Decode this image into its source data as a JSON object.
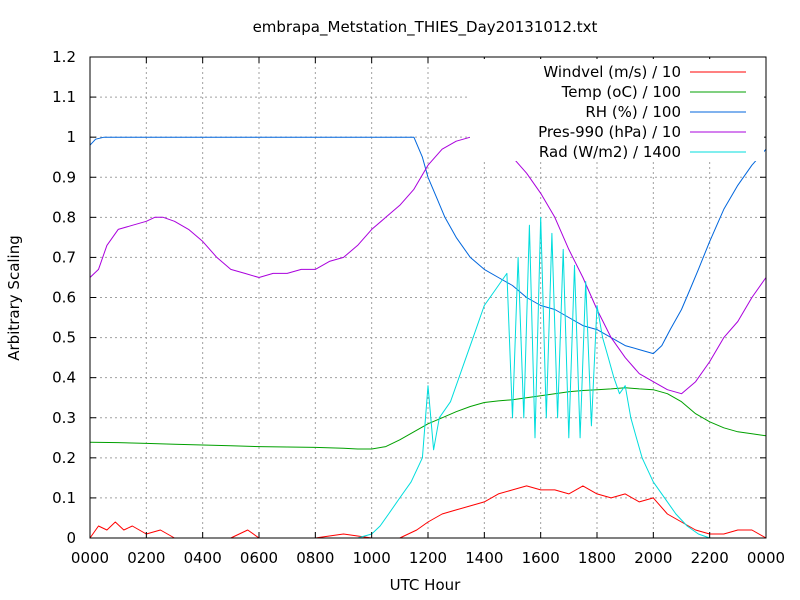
{
  "chart_data": {
    "type": "line",
    "title": "embrapa_Metstation_THIES_Day20131012.txt",
    "xlabel": "UTC Hour",
    "ylabel": "Arbitrary Scaling",
    "xlim": [
      0,
      24
    ],
    "ylim": [
      0,
      1.2
    ],
    "grid": true,
    "legend_position": "top-right",
    "x_tick_values": [
      0,
      2,
      4,
      6,
      8,
      10,
      12,
      14,
      16,
      18,
      20,
      22,
      24
    ],
    "x_tick_labels": [
      "0000",
      "0200",
      "0400",
      "0600",
      "0800",
      "1000",
      "1200",
      "1400",
      "1600",
      "1800",
      "2000",
      "2200",
      "0000"
    ],
    "y_ticks": [
      "0",
      "0.1",
      "0.2",
      "0.3",
      "0.4",
      "0.5",
      "0.6",
      "0.7",
      "0.8",
      "0.9",
      "1",
      "1.1",
      "1.2"
    ],
    "series": [
      {
        "name": "Windvel (m/s) / 10",
        "color": "#ff0000",
        "x": [
          0.0,
          0.3,
          0.6,
          0.9,
          1.2,
          1.5,
          2.0,
          2.5,
          3.0,
          3.5,
          4.0,
          5.0,
          5.6,
          6.0,
          7.0,
          8.0,
          9.0,
          10.0,
          11.0,
          11.6,
          12.0,
          12.5,
          13.0,
          13.5,
          14.0,
          14.5,
          15.0,
          15.5,
          16.0,
          16.5,
          17.0,
          17.5,
          18.0,
          18.5,
          19.0,
          19.5,
          20.0,
          20.5,
          21.0,
          21.5,
          22.0,
          22.5,
          23.0,
          23.5,
          24.0
        ],
        "y": [
          0.0,
          0.03,
          0.02,
          0.04,
          0.02,
          0.03,
          0.01,
          0.02,
          0.0,
          0.0,
          0.0,
          0.0,
          0.02,
          0.0,
          0.0,
          0.0,
          0.01,
          0.0,
          0.0,
          0.02,
          0.04,
          0.06,
          0.07,
          0.08,
          0.09,
          0.11,
          0.12,
          0.13,
          0.12,
          0.12,
          0.11,
          0.13,
          0.11,
          0.1,
          0.11,
          0.09,
          0.1,
          0.06,
          0.04,
          0.02,
          0.01,
          0.01,
          0.02,
          0.02,
          0.0
        ]
      },
      {
        "name": "Temp (oC) / 100",
        "color": "#00a000",
        "x": [
          0.0,
          1.0,
          2.0,
          3.0,
          4.0,
          5.0,
          6.0,
          7.0,
          8.0,
          9.0,
          9.5,
          10.0,
          10.5,
          11.0,
          11.5,
          12.0,
          12.5,
          13.0,
          13.5,
          14.0,
          14.5,
          15.0,
          15.5,
          16.0,
          16.5,
          17.0,
          17.5,
          18.0,
          18.5,
          19.0,
          19.5,
          20.0,
          20.5,
          21.0,
          21.5,
          22.0,
          22.5,
          23.0,
          23.5,
          24.0
        ],
        "y": [
          0.239,
          0.238,
          0.236,
          0.234,
          0.232,
          0.23,
          0.228,
          0.227,
          0.226,
          0.224,
          0.222,
          0.222,
          0.228,
          0.245,
          0.265,
          0.285,
          0.3,
          0.315,
          0.328,
          0.338,
          0.342,
          0.345,
          0.35,
          0.355,
          0.36,
          0.365,
          0.368,
          0.37,
          0.372,
          0.375,
          0.372,
          0.37,
          0.36,
          0.34,
          0.31,
          0.29,
          0.275,
          0.265,
          0.26,
          0.255
        ]
      },
      {
        "name": "RH (%) / 100",
        "color": "#0066dd",
        "x": [
          0.0,
          0.2,
          0.5,
          2.0,
          4.0,
          6.0,
          8.0,
          10.0,
          11.0,
          11.5,
          11.8,
          12.0,
          12.3,
          12.6,
          13.0,
          13.5,
          14.0,
          14.5,
          15.0,
          15.5,
          16.0,
          16.5,
          17.0,
          17.5,
          18.0,
          18.5,
          19.0,
          19.5,
          20.0,
          20.3,
          20.6,
          21.0,
          21.3,
          21.6,
          22.0,
          22.5,
          23.0,
          23.5,
          24.0
        ],
        "y": [
          0.98,
          0.995,
          1.0,
          1.0,
          1.0,
          1.0,
          1.0,
          1.0,
          1.0,
          1.0,
          0.95,
          0.9,
          0.85,
          0.8,
          0.75,
          0.7,
          0.67,
          0.65,
          0.63,
          0.6,
          0.58,
          0.57,
          0.55,
          0.53,
          0.52,
          0.5,
          0.48,
          0.47,
          0.46,
          0.48,
          0.52,
          0.57,
          0.62,
          0.67,
          0.74,
          0.82,
          0.88,
          0.93,
          0.97
        ]
      },
      {
        "name": "Pres-990 (hPa) / 10",
        "color": "#aa00dd",
        "x": [
          0.0,
          0.3,
          0.6,
          1.0,
          1.5,
          2.0,
          2.3,
          2.6,
          3.0,
          3.5,
          4.0,
          4.5,
          5.0,
          5.5,
          6.0,
          6.5,
          7.0,
          7.5,
          8.0,
          8.5,
          9.0,
          9.5,
          10.0,
          10.5,
          11.0,
          11.5,
          12.0,
          12.5,
          13.0,
          13.5,
          14.0,
          14.5,
          15.0,
          15.5,
          16.0,
          16.5,
          17.0,
          17.5,
          18.0,
          18.5,
          19.0,
          19.5,
          20.0,
          20.5,
          21.0,
          21.5,
          22.0,
          22.5,
          23.0,
          23.5,
          24.0
        ],
        "y": [
          0.65,
          0.67,
          0.73,
          0.77,
          0.78,
          0.79,
          0.8,
          0.8,
          0.79,
          0.77,
          0.74,
          0.7,
          0.67,
          0.66,
          0.65,
          0.66,
          0.66,
          0.67,
          0.67,
          0.69,
          0.7,
          0.73,
          0.77,
          0.8,
          0.83,
          0.87,
          0.93,
          0.97,
          0.99,
          1.0,
          1.0,
          0.98,
          0.95,
          0.91,
          0.86,
          0.8,
          0.72,
          0.65,
          0.57,
          0.5,
          0.45,
          0.41,
          0.39,
          0.37,
          0.36,
          0.39,
          0.44,
          0.5,
          0.54,
          0.6,
          0.65
        ]
      },
      {
        "name": "Rad (W/m2) / 1400",
        "color": "#00dddd",
        "x": [
          0.0,
          9.5,
          10.0,
          10.3,
          10.6,
          11.0,
          11.4,
          11.8,
          12.0,
          12.2,
          12.4,
          12.8,
          13.2,
          13.6,
          14.0,
          14.4,
          14.8,
          15.0,
          15.2,
          15.4,
          15.6,
          15.8,
          16.0,
          16.2,
          16.4,
          16.6,
          16.8,
          17.0,
          17.2,
          17.4,
          17.6,
          17.8,
          18.0,
          18.2,
          18.4,
          18.6,
          18.8,
          19.0,
          19.2,
          19.4,
          19.6,
          19.8,
          20.0,
          20.4,
          20.8,
          21.2,
          21.6,
          22.0,
          24.0
        ],
        "y": [
          0.0,
          0.0,
          0.01,
          0.03,
          0.06,
          0.1,
          0.14,
          0.2,
          0.38,
          0.22,
          0.3,
          0.34,
          0.42,
          0.5,
          0.58,
          0.62,
          0.66,
          0.3,
          0.7,
          0.3,
          0.78,
          0.25,
          0.8,
          0.3,
          0.76,
          0.3,
          0.72,
          0.25,
          0.68,
          0.25,
          0.64,
          0.28,
          0.58,
          0.5,
          0.45,
          0.4,
          0.36,
          0.38,
          0.3,
          0.25,
          0.2,
          0.17,
          0.14,
          0.1,
          0.06,
          0.03,
          0.01,
          0.0,
          0.0
        ]
      }
    ]
  }
}
